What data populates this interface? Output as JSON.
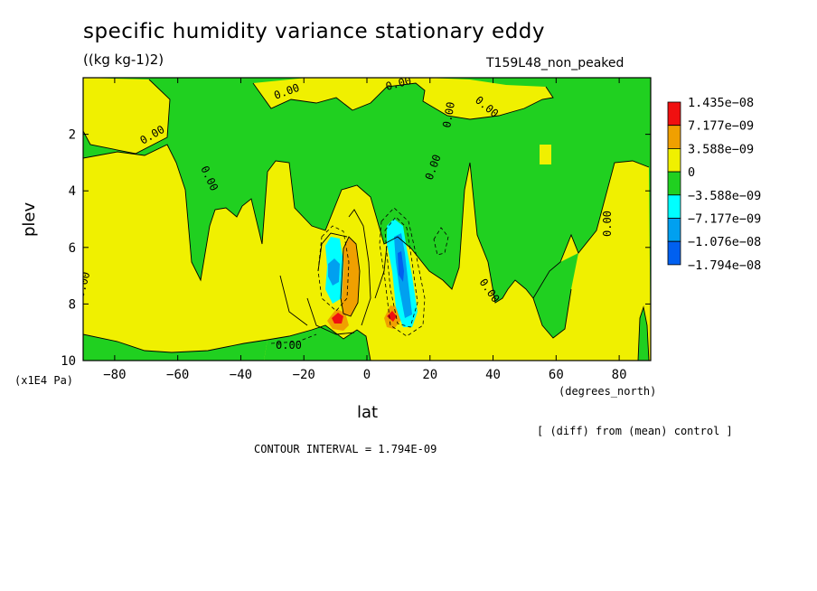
{
  "title": "specific humidity variance stationary eddy",
  "units": "((kg kg-1)2)",
  "run_label": "T159L48_non_peaked",
  "note": "[ (diff) from (mean) control ]",
  "contour_interval": "CONTOUR INTERVAL = 1.794E-09",
  "colors": {
    "lev_pos3": "#f01010",
    "lev_pos2": "#f0a000",
    "lev_pos1": "#f0f000",
    "lev_neg1": "#20d020",
    "lev_neg2": "#00ffff",
    "lev_neg3": "#00a0f0",
    "lev_neg4": "#0060f0"
  },
  "chart_data": {
    "type": "heatmap",
    "title": "specific humidity variance stationary eddy",
    "xlabel": "lat",
    "ylabel": "plev",
    "xunit": "(degrees_north)",
    "yunit": "(x1E4 Pa)",
    "xlim": [
      -90,
      90
    ],
    "ylim": [
      10,
      0
    ],
    "xticks": [
      -80,
      -60,
      -40,
      -20,
      0,
      20,
      40,
      60,
      80
    ],
    "xtick_labels": [
      "−80",
      "−60",
      "−40",
      "−20",
      "0",
      "20",
      "40",
      "60",
      "80"
    ],
    "yticks": [
      2,
      4,
      6,
      8,
      10
    ],
    "ytick_labels": [
      "2",
      "4",
      "6",
      "8",
      "10"
    ],
    "contour_labels": [
      "0.00",
      "0.00",
      "0.00",
      "0.00",
      "0.00",
      "0.00",
      "0.00",
      "0.00",
      "0.00",
      "0.00",
      "0.00"
    ],
    "legend": {
      "placement": "right",
      "levels": [
        "1.435e−08",
        "7.177e−09",
        "3.588e−09",
        "0",
        "−3.588e−09",
        "−7.177e−09",
        "−1.076e−08",
        "−1.794e−08"
      ],
      "colors": [
        "#f01010",
        "#f0a000",
        "#f0f000",
        "#20d020",
        "#00ffff",
        "#00a0f0",
        "#0060f0"
      ]
    }
  }
}
